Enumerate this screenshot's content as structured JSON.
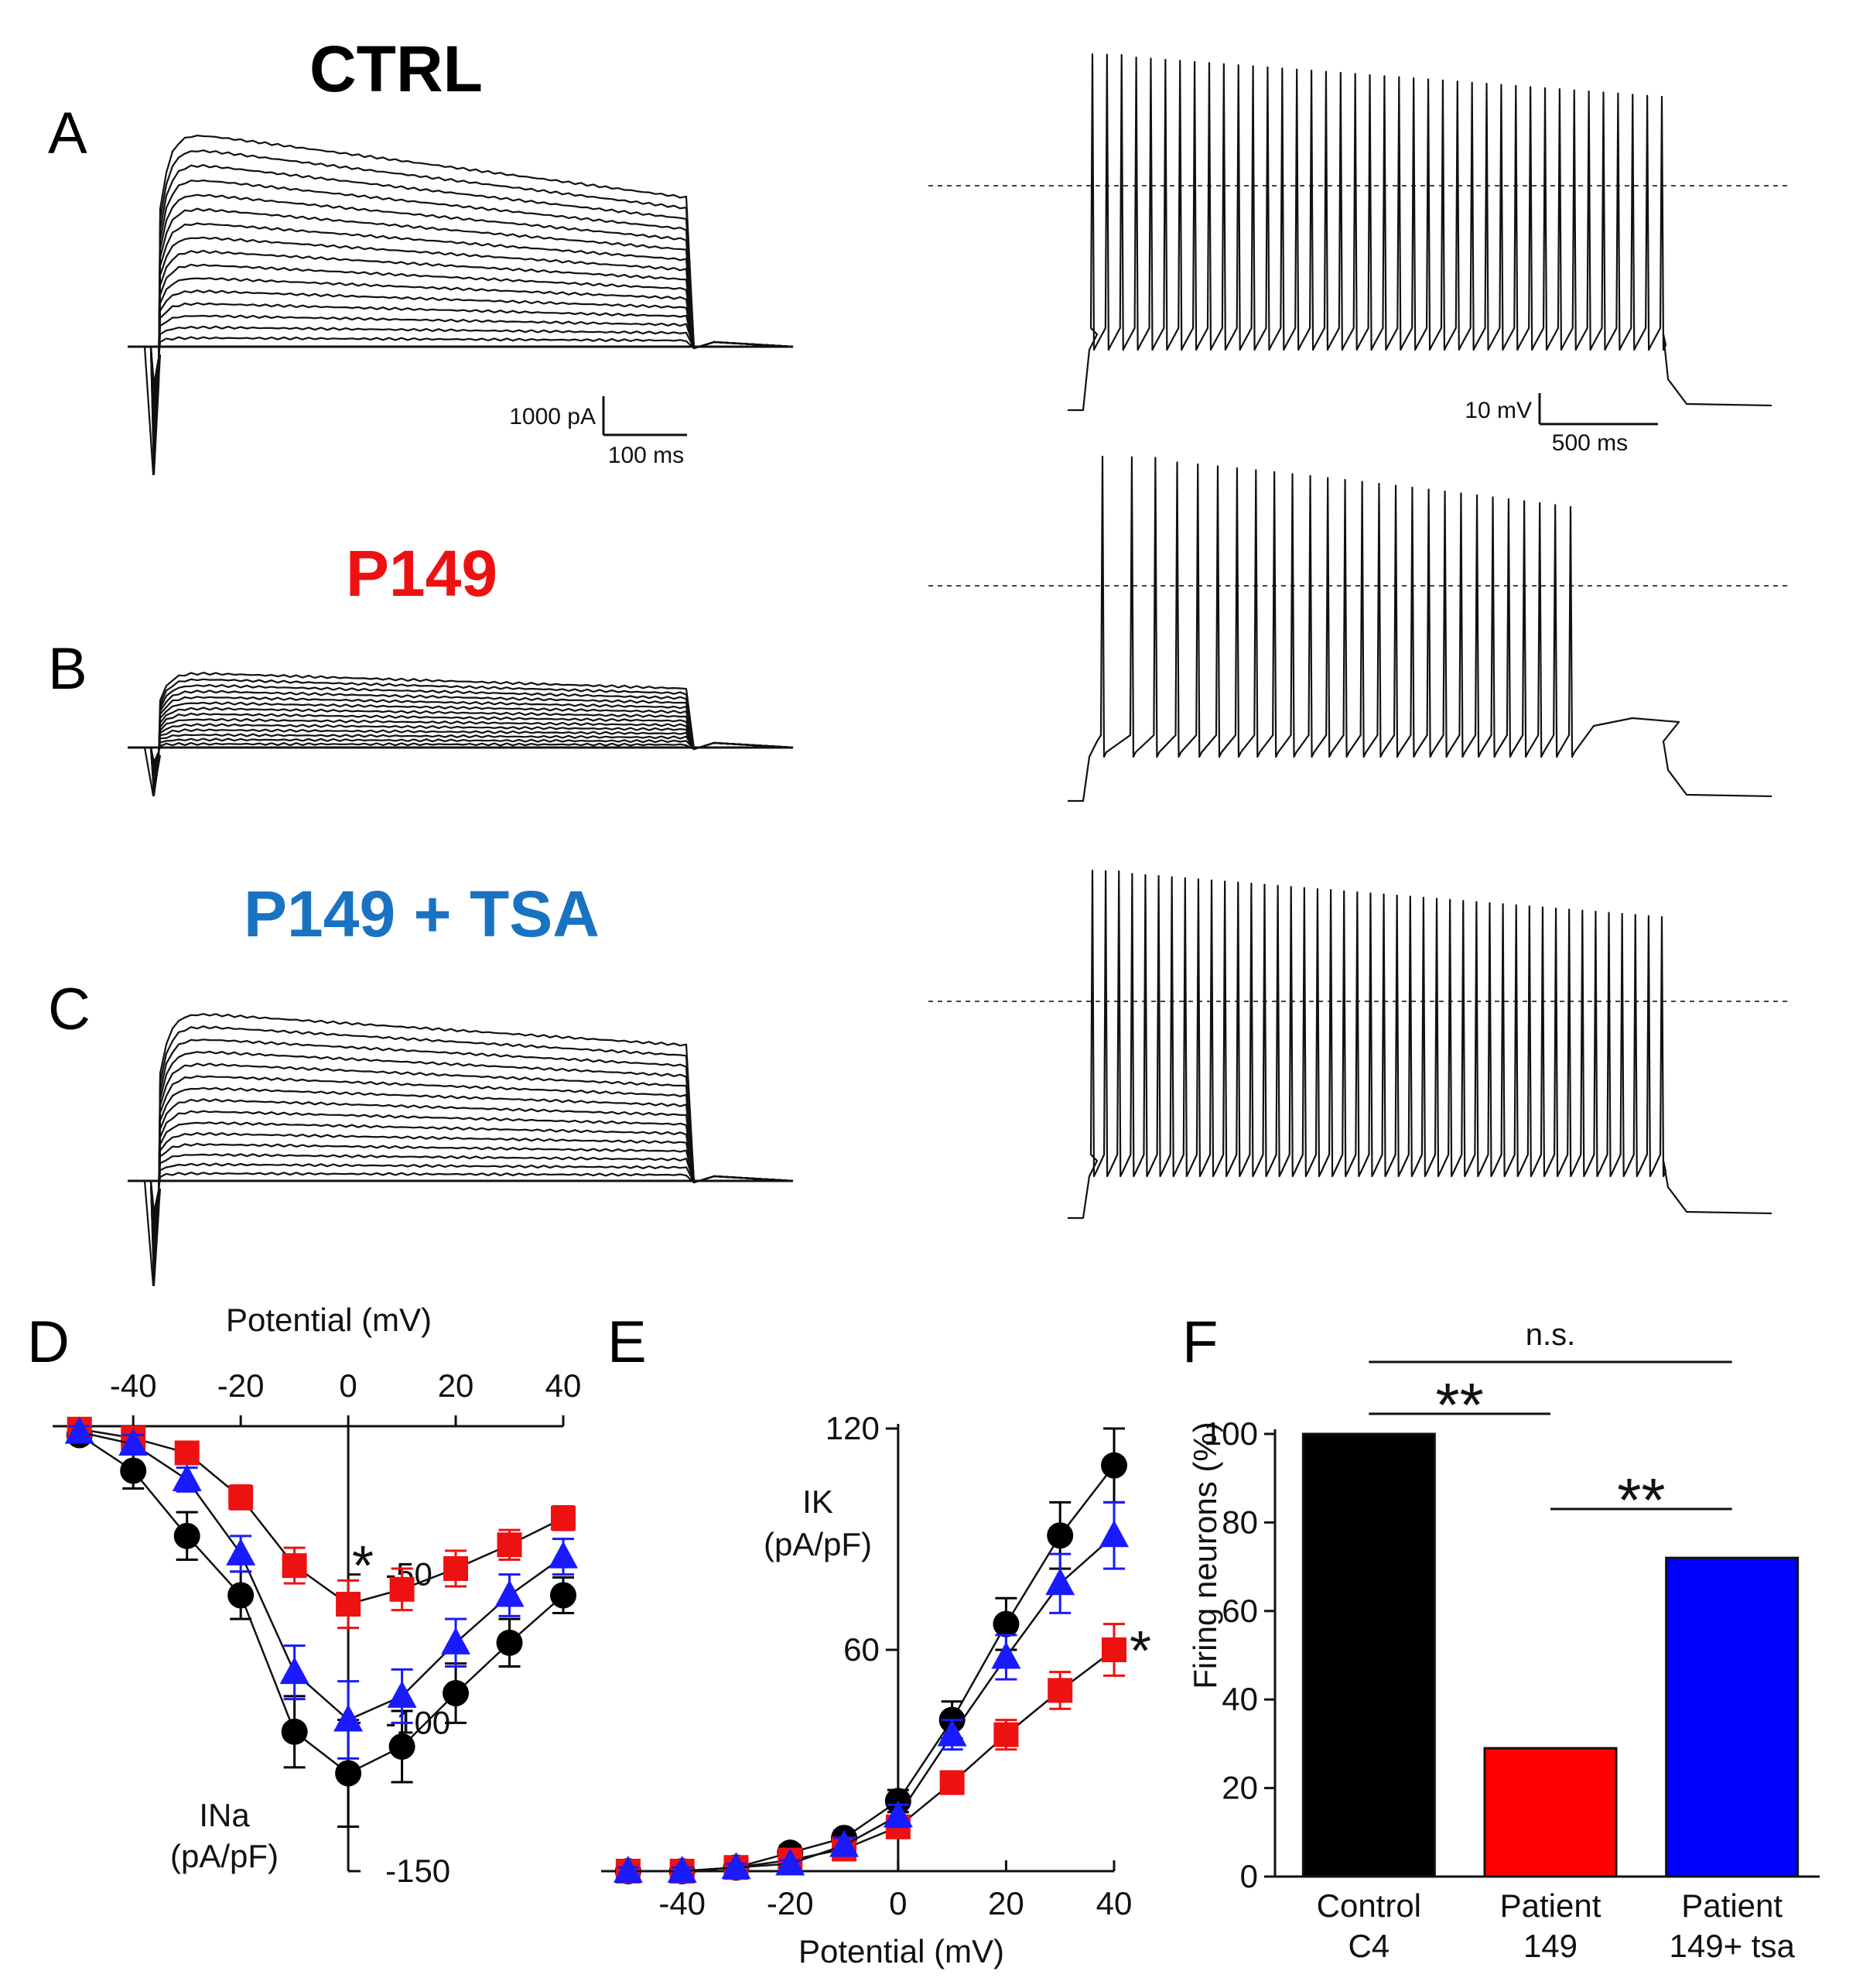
{
  "labels": {
    "panels": [
      "A",
      "B",
      "C",
      "D",
      "E",
      "F"
    ],
    "conditions": [
      {
        "name": "CTRL",
        "color": "#000000"
      },
      {
        "name": "P149",
        "color": "#ee1111"
      },
      {
        "name": "P149 + TSA",
        "color": "#1a73c2"
      }
    ]
  },
  "scale_bars": {
    "current": {
      "y_label": "1000 pA",
      "x_label": "100 ms"
    },
    "voltage": {
      "y_label": "10 mV",
      "x_label": "500 ms"
    }
  },
  "chart_data": [
    {
      "id": "D",
      "type": "line",
      "title": "",
      "xlabel": "Potential (mV)",
      "ylabel": "INa\n(pA/pF)",
      "xlim": [
        -55,
        40
      ],
      "ylim": [
        -150,
        0
      ],
      "x_ticks": [
        -40,
        -20,
        0,
        20,
        40
      ],
      "y_ticks": [
        -50,
        -100,
        -150
      ],
      "x": [
        -50,
        -40,
        -30,
        -20,
        -10,
        0,
        10,
        20,
        30,
        40
      ],
      "series": [
        {
          "name": "CTRL",
          "color": "#000000",
          "marker": "circle",
          "values": [
            -3,
            -15,
            -37,
            -57,
            -103,
            -117,
            -108,
            -90,
            -73,
            -57
          ],
          "errors": [
            2,
            6,
            8,
            8,
            12,
            18,
            12,
            10,
            8,
            6
          ]
        },
        {
          "name": "P149",
          "color": "#ee1111",
          "marker": "square",
          "values": [
            -1,
            -4,
            -9,
            -24,
            -47,
            -60,
            -55,
            -48,
            -40,
            -31
          ],
          "errors": [
            2,
            2,
            3,
            4,
            6,
            8,
            7,
            6,
            5,
            4
          ]
        },
        {
          "name": "P149 + TSA",
          "color": "#1a1aff",
          "marker": "triangle",
          "values": [
            -2,
            -6,
            -18,
            -43,
            -83,
            -99,
            -91,
            -73,
            -57,
            -44
          ],
          "errors": [
            2,
            3,
            4,
            6,
            9,
            13,
            9,
            8,
            7,
            6
          ]
        }
      ],
      "annotations": [
        "*"
      ]
    },
    {
      "id": "E",
      "type": "line",
      "title": "",
      "xlabel": "Potential (mV)",
      "ylabel": "IK\n(pA/pF)",
      "xlim": [
        -55,
        40
      ],
      "ylim": [
        0,
        120
      ],
      "x_ticks": [
        -40,
        -20,
        0,
        20,
        40
      ],
      "y_ticks": [
        60,
        120
      ],
      "x": [
        -50,
        -40,
        -30,
        -20,
        -10,
        0,
        10,
        20,
        30,
        40
      ],
      "series": [
        {
          "name": "CTRL",
          "color": "#000000",
          "marker": "circle",
          "values": [
            0,
            0,
            1,
            5,
            9,
            19,
            41,
            67,
            91,
            110
          ],
          "errors": [
            1,
            1,
            1,
            2,
            2,
            3,
            5,
            7,
            9,
            10
          ]
        },
        {
          "name": "P149",
          "color": "#ee1111",
          "marker": "square",
          "values": [
            0,
            0,
            1,
            3,
            6,
            12,
            24,
            37,
            49,
            60
          ],
          "errors": [
            1,
            1,
            1,
            1,
            2,
            2,
            3,
            4,
            5,
            7
          ]
        },
        {
          "name": "P149 + TSA",
          "color": "#1a1aff",
          "marker": "triangle",
          "values": [
            0,
            0,
            1,
            2,
            7,
            15,
            37,
            58,
            78,
            91
          ],
          "errors": [
            1,
            1,
            1,
            1,
            2,
            3,
            4,
            6,
            8,
            9
          ]
        }
      ],
      "annotations": [
        "*"
      ]
    },
    {
      "id": "F",
      "type": "bar",
      "title": "",
      "xlabel": "",
      "ylabel": "Firing neurons (%)",
      "ylim": [
        0,
        100
      ],
      "y_ticks": [
        0,
        20,
        40,
        60,
        80,
        100
      ],
      "categories": [
        {
          "line1": "Control",
          "line2": "C4"
        },
        {
          "line1": "Patient",
          "line2": "149"
        },
        {
          "line1": "Patient",
          "line2": "149+ tsa"
        }
      ],
      "values": [
        100,
        29,
        72
      ],
      "colors": [
        "#000000",
        "#ff0000",
        "#0000ff"
      ],
      "significance": [
        {
          "label": "**",
          "between": [
            0,
            1
          ]
        },
        {
          "label": "**",
          "between": [
            1,
            2
          ]
        },
        {
          "label": "n.s.",
          "between": [
            0,
            2
          ]
        }
      ]
    }
  ]
}
